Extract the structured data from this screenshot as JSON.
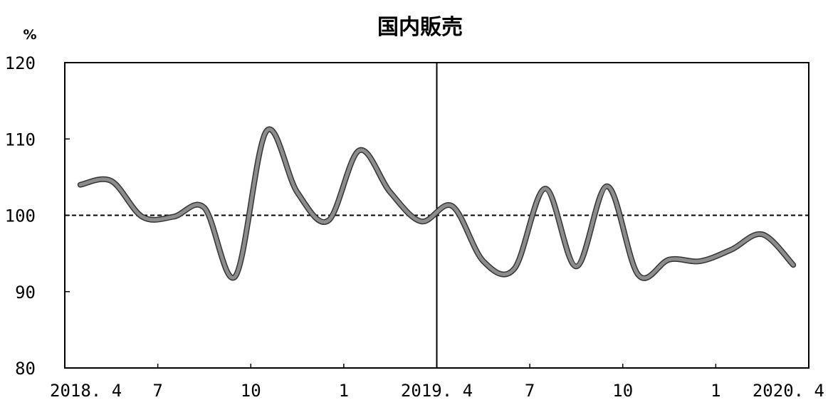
{
  "chart_data": {
    "type": "line",
    "title": "国内販売",
    "ylabel": "%",
    "xlabel": "",
    "ylim": [
      80,
      120
    ],
    "yticks": [
      80,
      90,
      100,
      110,
      120
    ],
    "yticks_labels": [
      "80",
      "90",
      "100",
      "110",
      "120"
    ],
    "xlim": [
      0,
      24
    ],
    "xticks": [
      {
        "x": 0,
        "label": "2018. 4"
      },
      {
        "x": 3,
        "label": "7"
      },
      {
        "x": 6,
        "label": "10"
      },
      {
        "x": 9,
        "label": "1"
      },
      {
        "x": 12,
        "label": "2019. 4"
      },
      {
        "x": 15,
        "label": "7"
      },
      {
        "x": 18,
        "label": "10"
      },
      {
        "x": 21,
        "label": "1"
      },
      {
        "x": 24,
        "label": "2020. 4"
      }
    ],
    "reference_line": {
      "y": 100,
      "style": "dashed"
    },
    "divider": {
      "x": 12
    },
    "grid": false,
    "series": [
      {
        "color": "#8c8c8c",
        "x": [
          0.5,
          1.5,
          2.5,
          3.5,
          4.5,
          5.5,
          6.5,
          7.5,
          8.5,
          9.5,
          10.5,
          11.5,
          12.5,
          13.5,
          14.5,
          15.5,
          16.5,
          17.5,
          18.5,
          19.5,
          20.5,
          21.5,
          22.5,
          23.5
        ],
        "values": [
          104.0,
          104.5,
          99.8,
          99.8,
          101.0,
          92.0,
          111.0,
          103.0,
          99.3,
          108.5,
          103.0,
          99.2,
          101.2,
          94.0,
          93.0,
          103.5,
          93.3,
          103.8,
          92.2,
          94.2,
          94.0,
          95.5,
          97.5,
          93.5
        ]
      }
    ]
  }
}
